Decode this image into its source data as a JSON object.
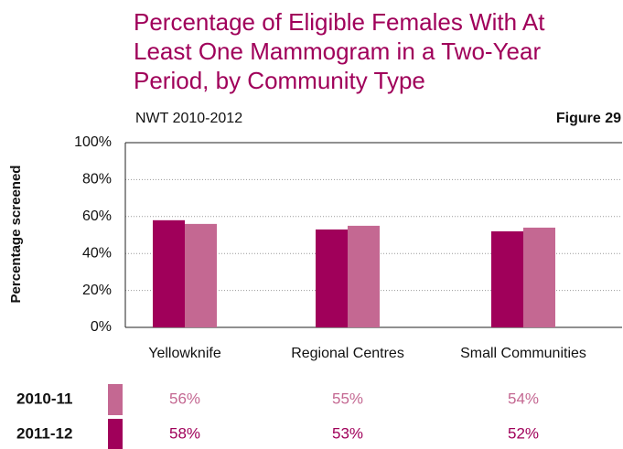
{
  "chart_data": {
    "type": "bar",
    "title": "Percentage of Eligible Females With At Least One Mammogram in a Two-Year Period, by Community Type",
    "subtitle": "NWT 2010-2012",
    "figure_label": "Figure 29",
    "y_label": "Percentage screened",
    "categories": [
      "Yellowknife",
      "Regional Centres",
      "Small Communities"
    ],
    "series": [
      {
        "name": "2010-11",
        "color": "#c46892",
        "values": [
          56,
          55,
          54
        ],
        "value_labels": [
          "56%",
          "55%",
          "54%"
        ]
      },
      {
        "name": "2011-12",
        "color": "#a0005a",
        "values": [
          58,
          53,
          52
        ],
        "value_labels": [
          "58%",
          "53%",
          "52%"
        ]
      }
    ],
    "ylim": [
      0,
      100
    ],
    "yticks": [
      {
        "value": 0,
        "label": "0%"
      },
      {
        "value": 20,
        "label": "20%"
      },
      {
        "value": 40,
        "label": "40%"
      },
      {
        "value": 60,
        "label": "60%"
      },
      {
        "value": 80,
        "label": "80%"
      },
      {
        "value": 100,
        "label": "100%"
      }
    ],
    "grid": true
  }
}
